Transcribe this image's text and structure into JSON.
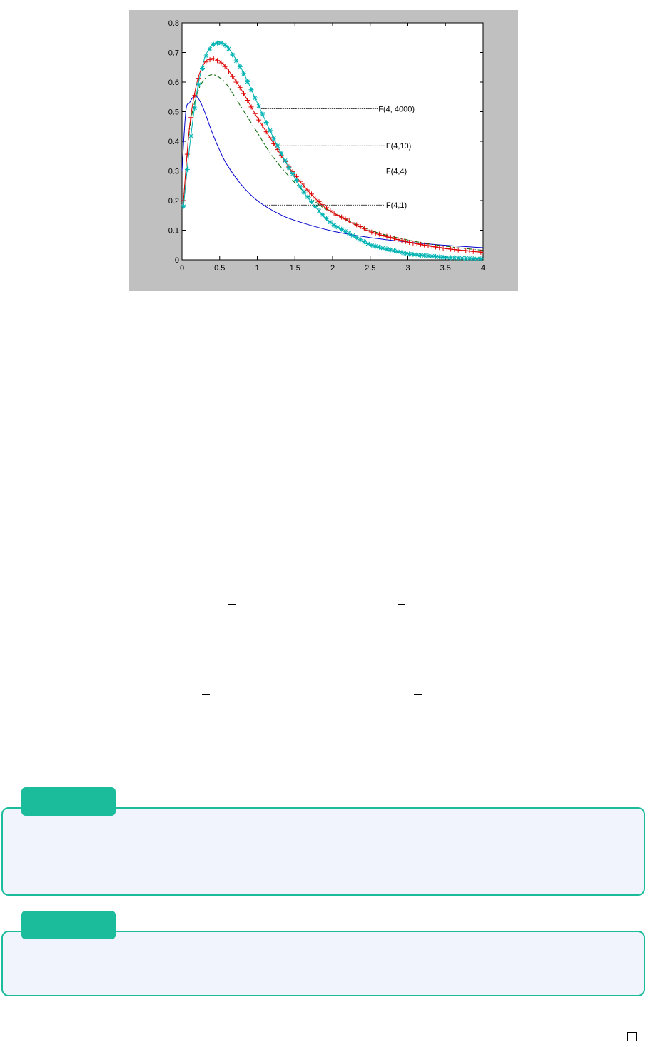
{
  "chart_data": {
    "type": "line",
    "xlim": [
      0,
      4
    ],
    "ylim": [
      0,
      0.8
    ],
    "xticks": [
      0,
      0.5,
      1,
      1.5,
      2,
      2.5,
      3,
      3.5,
      4
    ],
    "yticks": [
      0,
      0.1,
      0.2,
      0.3,
      0.4,
      0.5,
      0.6,
      0.7,
      0.8
    ],
    "xtick_labels": [
      "0",
      "0.5",
      "1",
      "1.5",
      "2",
      "2.5",
      "3",
      "3.5",
      "4"
    ],
    "ytick_labels": [
      "0",
      "0.1",
      "0.2",
      "0.3",
      "0.4",
      "0.5",
      "0.6",
      "0.7",
      "0.8"
    ],
    "grid": false,
    "background": "#c0c0c0",
    "series": [
      {
        "name": "F(4,1)",
        "color": "#0000cc",
        "style": "solid",
        "marker": "none",
        "x": [
          0.0,
          0.05,
          0.1,
          0.15,
          0.2,
          0.25,
          0.3,
          0.4,
          0.5,
          0.6,
          0.8,
          1.0,
          1.25,
          1.5,
          2.0,
          2.5,
          3.0,
          3.5,
          4.0
        ],
        "y": [
          0.3,
          0.5,
          0.53,
          0.55,
          0.55,
          0.53,
          0.5,
          0.43,
          0.37,
          0.32,
          0.25,
          0.2,
          0.16,
          0.133,
          0.097,
          0.075,
          0.06,
          0.049,
          0.041
        ]
      },
      {
        "name": "F(4,4)",
        "color": "#006600",
        "style": "dashdot",
        "marker": "none",
        "x": [
          0.02,
          0.1,
          0.2,
          0.3,
          0.4,
          0.5,
          0.6,
          0.8,
          1.0,
          1.2,
          1.5,
          1.8,
          2.0,
          2.5,
          3.0,
          3.5,
          4.0
        ],
        "y": [
          0.2,
          0.44,
          0.56,
          0.61,
          0.625,
          0.615,
          0.59,
          0.51,
          0.43,
          0.35,
          0.26,
          0.19,
          0.16,
          0.1,
          0.067,
          0.046,
          0.032
        ]
      },
      {
        "name": "F(4,10)",
        "color": "#dd0000",
        "style": "solid",
        "marker": "+",
        "x": [
          0.02,
          0.1,
          0.2,
          0.3,
          0.4,
          0.5,
          0.6,
          0.8,
          1.0,
          1.2,
          1.4,
          1.6,
          1.8,
          2.0,
          2.5,
          3.0,
          3.5,
          4.0
        ],
        "y": [
          0.2,
          0.45,
          0.6,
          0.665,
          0.68,
          0.67,
          0.645,
          0.57,
          0.48,
          0.4,
          0.32,
          0.255,
          0.2,
          0.16,
          0.095,
          0.06,
          0.038,
          0.025
        ]
      },
      {
        "name": "F(4, 4000)",
        "color": "#00b3b3",
        "style": "solid",
        "marker": "*",
        "x": [
          0.02,
          0.1,
          0.2,
          0.3,
          0.4,
          0.5,
          0.6,
          0.8,
          1.0,
          1.2,
          1.4,
          1.6,
          1.8,
          2.0,
          2.5,
          3.0,
          3.5,
          4.0
        ],
        "y": [
          0.18,
          0.38,
          0.57,
          0.68,
          0.725,
          0.735,
          0.72,
          0.64,
          0.53,
          0.42,
          0.32,
          0.235,
          0.17,
          0.12,
          0.05,
          0.02,
          0.008,
          0.003
        ]
      }
    ],
    "annotations": [
      {
        "text": "F(4, 4000)",
        "x0": 1.05,
        "y": 0.51,
        "x1": 2.6
      },
      {
        "text": "F(4,10)",
        "x0": 1.25,
        "y": 0.385,
        "x1": 2.7
      },
      {
        "text": "F(4,4)",
        "x0": 1.25,
        "y": 0.3,
        "x1": 2.7
      },
      {
        "text": "F(4,1)",
        "x0": 1.1,
        "y": 0.185,
        "x1": 2.7
      }
    ]
  },
  "colors": {
    "callout_border": "#1abc9c",
    "callout_fill": "#f2f4fd",
    "tag_fill": "#1abc9c"
  }
}
